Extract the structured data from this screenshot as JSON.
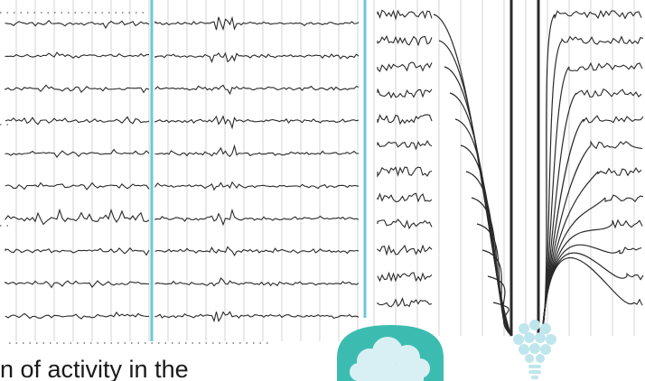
{
  "slide": {
    "caption_text": "n of activity in the",
    "divider_color": "#6cc7d8",
    "trace_color": "#2a2a2a",
    "grid_color": "#c9c9c9",
    "accent_logo_color": "#3cbcb0",
    "cloud_color": "#d8f0f4"
  },
  "figure_left": {
    "panels": [
      {
        "name": "background-activity"
      },
      {
        "name": "spike-burst"
      }
    ],
    "channel_labels": [
      "",
      "",
      "",
      "",
      "",
      "",
      "",
      "",
      "",
      ""
    ]
  },
  "figure_right": {
    "name": "eye-blink-artifact",
    "channel_labels": [
      "",
      "",
      "",
      "",
      "",
      "",
      "",
      "",
      "",
      "",
      "",
      ""
    ]
  },
  "logos": {
    "cloud_icon": "cloud-brain-logo-icon",
    "bulb_icon": "lightbulb-logo-icon"
  }
}
